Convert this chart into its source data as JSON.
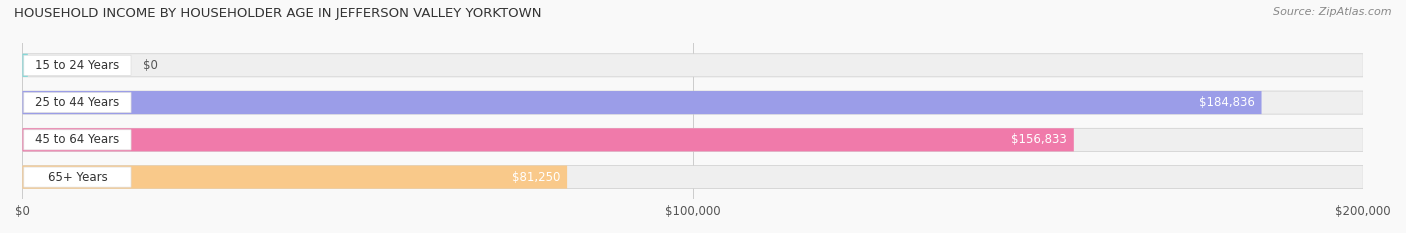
{
  "title": "HOUSEHOLD INCOME BY HOUSEHOLDER AGE IN JEFFERSON VALLEY YORKTOWN",
  "source": "Source: ZipAtlas.com",
  "categories": [
    "15 to 24 Years",
    "25 to 44 Years",
    "45 to 64 Years",
    "65+ Years"
  ],
  "values": [
    0,
    184836,
    156833,
    81250
  ],
  "bar_colors": [
    "#7fd8d8",
    "#9b9de8",
    "#f07aaa",
    "#f9c98a"
  ],
  "background_bar_color": "#efefef",
  "xlim": [
    0,
    200000
  ],
  "xticks": [
    0,
    100000,
    200000
  ],
  "xtick_labels": [
    "$0",
    "$100,000",
    "$200,000"
  ],
  "value_labels": [
    "$0",
    "$184,836",
    "$156,833",
    "$81,250"
  ],
  "figsize": [
    14.06,
    2.33
  ],
  "dpi": 100
}
